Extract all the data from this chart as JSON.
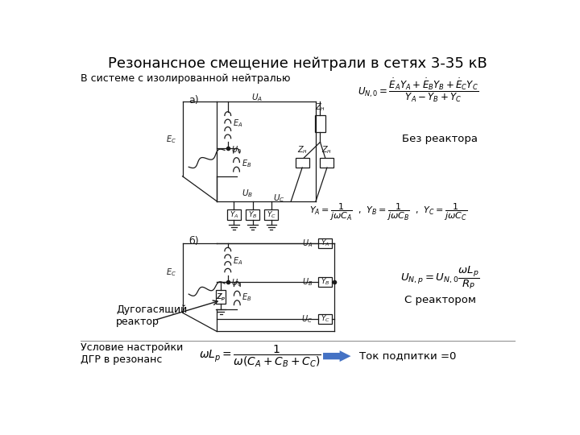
{
  "title": "Резонансное смещение нейтрали в сетях 3-35 кВ",
  "title_fontsize": 13,
  "bg_color": "#ffffff",
  "text_color": "#000000",
  "label_system": "В системе с изолированной нейтралью",
  "label_a": "а)",
  "label_b": "б)",
  "label_no_reactor": "Без реактора",
  "label_with_reactor": "С реактором",
  "label_dgr": "Дугогасящий\nреактор",
  "label_condition": "Условие настройки\nДГР в резонанс",
  "label_tok": "Ток подпитки =0",
  "arrow_color": "#4472c4",
  "line_color": "#1a1a1a"
}
